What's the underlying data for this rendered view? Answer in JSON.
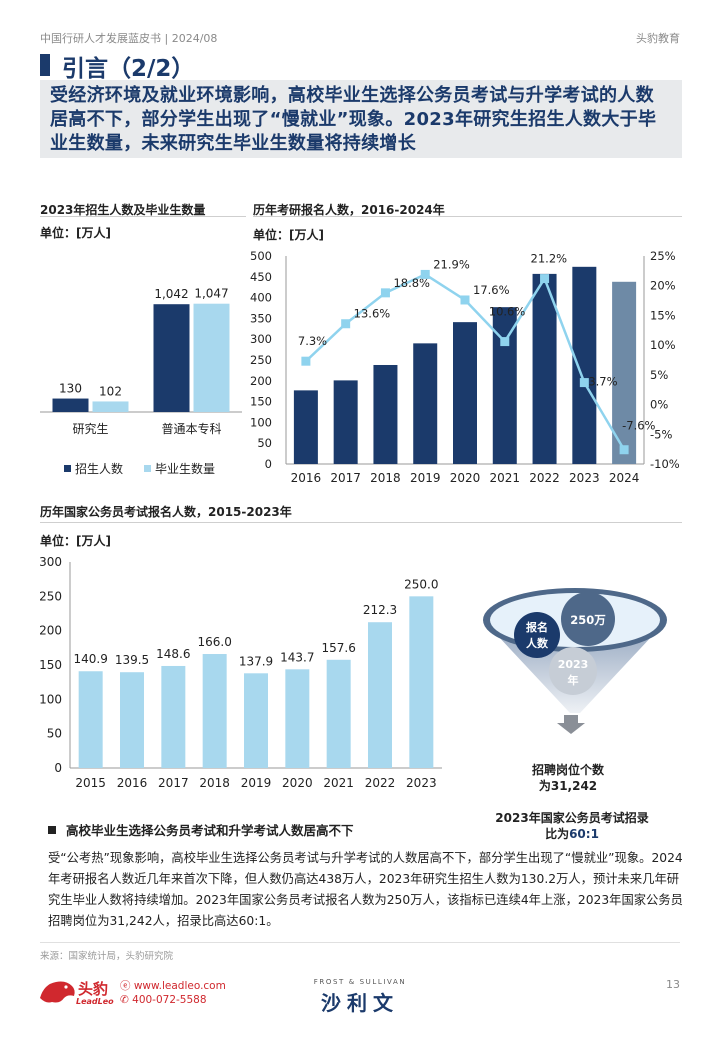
{
  "header": {
    "left": "中国行研人才发展蓝皮书 | 2024/08",
    "right": "头豹教育"
  },
  "title": "引言（2/2）",
  "subtitle": "受经济环境及就业环境影响，高校毕业生选择公务员考试与升学考试的人数居高不下，部分学生出现了“慢就业”现象。2023年研究生招生人数大于毕业生数量，未来研究生毕业生数量将持续增长",
  "chart_data": [
    {
      "type": "bar",
      "title": "2023年招生人数及毕业生数量",
      "unit": "单位：[万人]",
      "categories": [
        "研究生",
        "普通本专科"
      ],
      "series": [
        {
          "name": "招生人数",
          "values": [
            130,
            1042
          ],
          "labels": [
            "130",
            "1,042"
          ],
          "color": "#1b3a6b"
        },
        {
          "name": "毕业生数量",
          "values": [
            102,
            1047
          ],
          "labels": [
            "102",
            "1,047"
          ],
          "color": "#a8d8ee"
        }
      ],
      "ylim": [
        0,
        1450
      ],
      "legend": "bottom"
    },
    {
      "type": "bar+line",
      "title": "历年考研报名人数，2016-2024年",
      "unit": "单位：[万人]",
      "categories": [
        "2016",
        "2017",
        "2018",
        "2019",
        "2020",
        "2021",
        "2022",
        "2023",
        "2024"
      ],
      "bars": [
        177,
        201,
        238,
        290,
        341,
        377,
        457,
        474,
        438
      ],
      "bar_color": "#1b3a6b",
      "last_bar_color": "#6e8aa6",
      "growth": [
        7.3,
        13.6,
        18.8,
        21.9,
        17.6,
        10.6,
        21.2,
        3.7,
        -7.6
      ],
      "growth_labels": [
        "7.3%",
        "13.6%",
        "18.8%",
        "21.9%",
        "17.6%",
        "10.6%",
        "21.2%",
        "3.7%",
        "-7.6%"
      ],
      "line_color": "#8fd3ee",
      "ylim": [
        0,
        500
      ],
      "yticks": [
        "0",
        "50",
        "100",
        "150",
        "200",
        "250",
        "300",
        "350",
        "400",
        "450",
        "500"
      ],
      "y2lim": [
        -10,
        25
      ],
      "y2ticks": [
        "-10%",
        "-5%",
        "0%",
        "5%",
        "10%",
        "15%",
        "20%",
        "25%"
      ]
    },
    {
      "type": "bar",
      "title": "历年国家公务员考试报名人数，2015-2023年",
      "unit": "单位：[万人]",
      "categories": [
        "2015",
        "2016",
        "2017",
        "2018",
        "2019",
        "2020",
        "2021",
        "2022",
        "2023"
      ],
      "values": [
        140.9,
        139.5,
        148.6,
        166.0,
        137.9,
        143.7,
        157.6,
        212.3,
        250.0
      ],
      "labels": [
        "140.9",
        "139.5",
        "148.6",
        "166.0",
        "137.9",
        "143.7",
        "157.6",
        "212.3",
        "250.0"
      ],
      "color": "#a8d8ee",
      "ylim": [
        0,
        300
      ],
      "yticks": [
        "0",
        "50",
        "100",
        "150",
        "200",
        "250",
        "300"
      ]
    }
  ],
  "funnel": {
    "bubble1": "报名人数",
    "bubble2": "250万",
    "bubble3": "2023年",
    "caption1_line1": "招聘岗位个数",
    "caption1_line2": "为31,242",
    "caption2_line1": "2023年国家公务员考试招录",
    "caption2_prefix": "比为",
    "caption2_value": "60:1"
  },
  "section": {
    "heading": "高校毕业生选择公务员考试和升学考试人数居高不下",
    "body": "受“公考热”现象影响，高校毕业生选择公务员考试与升学考试的人数居高不下，部分学生出现了“慢就业”现象。2024年考研报名人数近几年来首次下降，但人数仍高达438万人，2023年研究生招生人数为130.2万人，预计未来几年研究生毕业人数将持续增加。2023年国家公务员考试报名人数为250万人，该指标已连续4年上涨，2023年国家公务员招聘岗位为31,242人，招录比高达60:1。"
  },
  "footer": {
    "source": "来源：国家统计局，头豹研究院",
    "logo_zh": "头豹",
    "logo_en": "LeadLeo",
    "website": "www.leadleo.com",
    "phone": "400-072-5588",
    "frost": "FROST & SULLIVAN",
    "shali": "沙利文",
    "page": "13"
  },
  "colors": {
    "navy": "#1b3a6b",
    "lightblue": "#a8d8ee",
    "gray_bar": "#6e8aa6",
    "brand_red": "#d0282e"
  }
}
